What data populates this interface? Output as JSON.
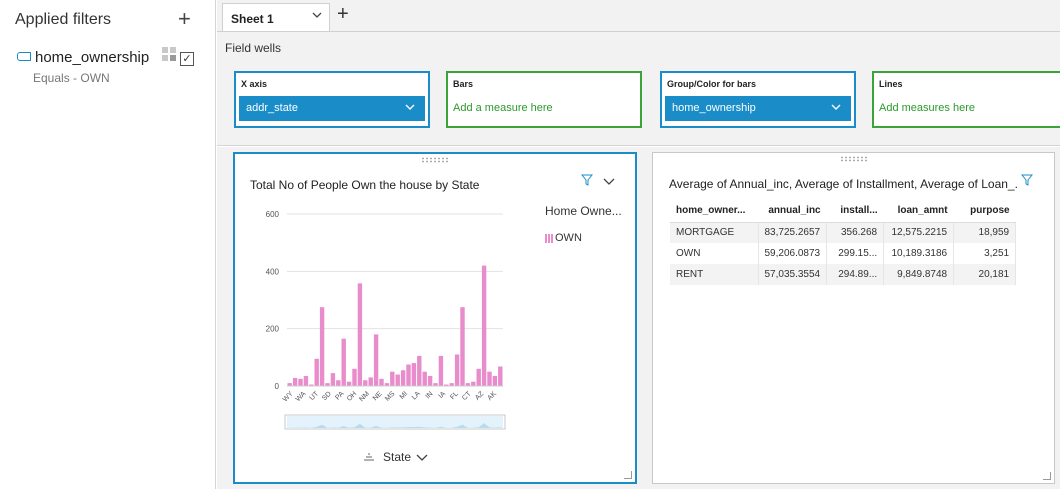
{
  "left_panel": {
    "title": "Applied filters",
    "add_icon": "plus-icon",
    "filter": {
      "name": "home_ownership",
      "condition": "Equals - OWN",
      "checked": "✓"
    }
  },
  "tabs": [
    {
      "label": "Sheet 1"
    }
  ],
  "field_wells": {
    "title": "Field wells",
    "x_axis": {
      "title": "X axis",
      "value": "addr_state"
    },
    "bars": {
      "title": "Bars",
      "placeholder": "Add a measure here"
    },
    "group": {
      "title": "Group/Color for bars",
      "value": "home_ownership"
    },
    "lines": {
      "title": "Lines",
      "placeholder": "Add measures here"
    }
  },
  "colors": {
    "accent": "#1a8dc8",
    "green": "#3aa33a",
    "bar": "#e88ccb"
  },
  "bar_visual": {
    "title": "Total No of People Own the house by State",
    "legend_title": "Home Owne...",
    "legend_item": "OWN",
    "x_field": "State"
  },
  "chart_data": {
    "type": "bar",
    "title": "Total No of People Own the house by State",
    "xlabel": "State",
    "ylabel": "",
    "ylim": [
      0,
      600
    ],
    "yticks": [
      0,
      200,
      400,
      600
    ],
    "tick_labels": [
      "WY",
      "WA",
      "UT",
      "SD",
      "PA",
      "OH",
      "NM",
      "NE",
      "MS",
      "MI",
      "LA",
      "IN",
      "IA",
      "FL",
      "CT",
      "AZ",
      "AK"
    ],
    "series": [
      {
        "name": "OWN",
        "values": [
          10,
          28,
          25,
          35,
          5,
          95,
          275,
          10,
          45,
          20,
          165,
          15,
          60,
          358,
          20,
          30,
          180,
          25,
          10,
          50,
          40,
          55,
          75,
          80,
          105,
          50,
          35,
          10,
          105,
          5,
          10,
          110,
          275,
          10,
          15,
          60,
          420,
          50,
          35,
          68
        ]
      }
    ],
    "grid": true,
    "legend": "right"
  },
  "table_visual": {
    "title": "Average of Annual_inc, Average of Installment, Average of Loan_...",
    "columns": [
      "home_owner...",
      "annual_inc",
      "install...",
      "loan_amnt",
      "purpose"
    ],
    "rows": [
      [
        "MORTGAGE",
        "83,725.2657",
        "356.268",
        "12,575.2215",
        "18,959"
      ],
      [
        "OWN",
        "59,206.0873",
        "299.15...",
        "10,189.3186",
        "3,251"
      ],
      [
        "RENT",
        "57,035.3554",
        "294.89...",
        "9,849.8748",
        "20,181"
      ]
    ]
  }
}
